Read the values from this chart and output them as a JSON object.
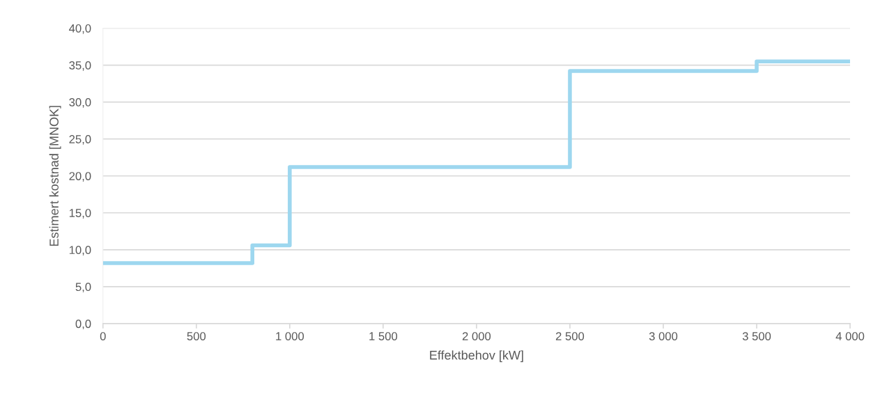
{
  "chart_data": {
    "type": "step",
    "xlabel": "Effektbehov [kW]",
    "ylabel": "Estimert kostnad [MNOK]",
    "x": [
      0,
      800,
      1000,
      2500,
      3500,
      4000
    ],
    "series": [
      {
        "color": "#9dd7ef",
        "values": [
          8.2,
          10.6,
          21.2,
          34.2,
          35.5,
          35.5
        ]
      }
    ],
    "xlim": [
      0,
      4000
    ],
    "xticks": [
      0,
      500,
      {
        "value": 1000,
        "label": "1 000"
      },
      {
        "value": 1500,
        "label": "1 500"
      },
      {
        "value": 2000,
        "label": "2 000"
      },
      {
        "value": 2500,
        "label": "2 500"
      },
      {
        "value": 3000,
        "label": "3 000"
      },
      {
        "value": 3500,
        "label": "3 500"
      },
      {
        "value": 4000,
        "label": "4 000"
      }
    ],
    "ylim": [
      0,
      40
    ],
    "yticks": [
      {
        "value": 0,
        "label": "0,0"
      },
      {
        "value": 5,
        "label": "5,0"
      },
      {
        "value": 10,
        "label": "10,0"
      },
      {
        "value": 15,
        "label": "15,0"
      },
      {
        "value": 20,
        "label": "20,0"
      },
      {
        "value": 25,
        "label": "25,0"
      },
      {
        "value": 30,
        "label": "30,0"
      },
      {
        "value": 35,
        "label": "35,0"
      },
      {
        "value": 40,
        "label": "40,0"
      }
    ],
    "grid": "y",
    "legend": false,
    "marker": "none",
    "line_style": "solid"
  }
}
